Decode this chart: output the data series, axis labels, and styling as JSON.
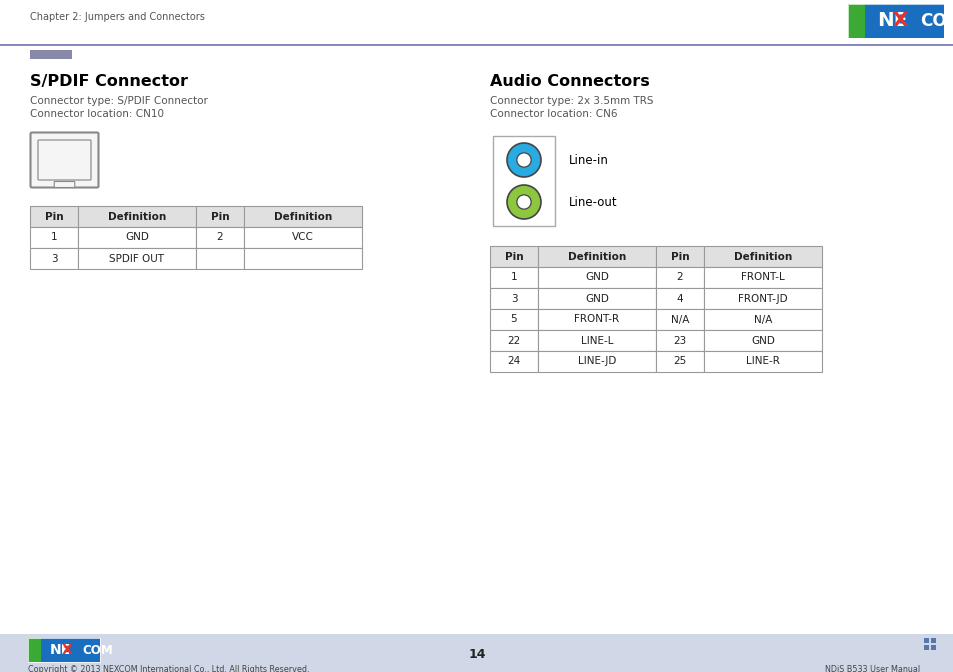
{
  "title_chapter": "Chapter 2: Jumpers and Connectors",
  "page_number": "14",
  "footer_left": "Copyright © 2013 NEXCOM International Co., Ltd. All Rights Reserved.",
  "footer_right": "NDiS B533 User Manual",
  "header_line_color": "#8888bb",
  "header_accent_color": "#7777aa",
  "spdif_title": "S/PDIF Connector",
  "spdif_type": "Connector type: S/PDIF Connector",
  "spdif_location": "Connector location: CN10",
  "spdif_table_header": [
    "Pin",
    "Definition",
    "Pin",
    "Definition"
  ],
  "spdif_table_rows": [
    [
      "1",
      "GND",
      "2",
      "VCC"
    ],
    [
      "3",
      "SPDIF OUT",
      "",
      ""
    ]
  ],
  "audio_title": "Audio Connectors",
  "audio_type": "Connector type: 2x 3.5mm TRS",
  "audio_location": "Connector location: CN6",
  "audio_labels": [
    "Line-in",
    "Line-out"
  ],
  "audio_colors": [
    "#29abe2",
    "#8dc63f"
  ],
  "audio_table_header": [
    "Pin",
    "Definition",
    "Pin",
    "Definition"
  ],
  "audio_table_rows": [
    [
      "1",
      "GND",
      "2",
      "FRONT-L"
    ],
    [
      "3",
      "GND",
      "4",
      "FRONT-JD"
    ],
    [
      "5",
      "FRONT-R",
      "N/A",
      "N/A"
    ],
    [
      "22",
      "LINE-L",
      "23",
      "GND"
    ],
    [
      "24",
      "LINE-JD",
      "25",
      "LINE-R"
    ]
  ],
  "nexcom_logo_blue": "#1a6ec0",
  "nexcom_logo_green": "#3aaa35",
  "bg_color": "#ffffff",
  "text_color": "#000000",
  "table_header_bg": "#e0e0e0",
  "table_border_color": "#999999",
  "table_text_color": "#222222",
  "title_color": "#000000",
  "footer_bg": "#d0d8e8"
}
